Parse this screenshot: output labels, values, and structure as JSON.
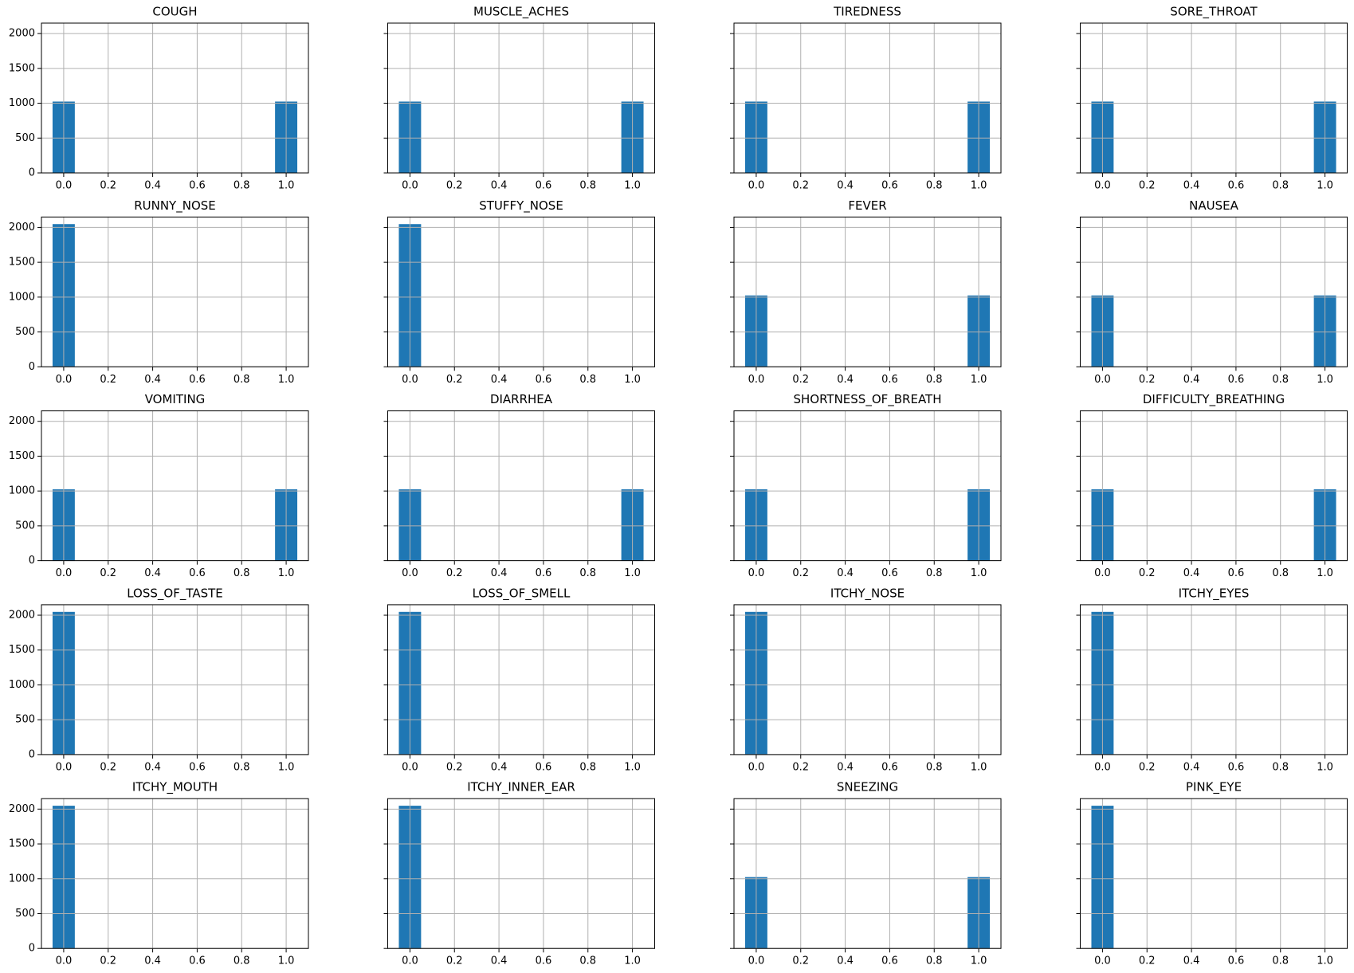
{
  "chart_data": [
    {
      "type": "histogram",
      "title": "COUGH",
      "bins": [
        -0.05,
        0.05,
        0.15,
        0.25,
        0.35,
        0.45,
        0.55,
        0.65,
        0.75,
        0.85,
        0.95,
        1.05
      ],
      "values": [
        1024,
        0,
        0,
        0,
        0,
        0,
        0,
        0,
        0,
        0,
        1024
      ],
      "color": "#1f77b4",
      "xlim": [
        -0.1,
        1.1
      ],
      "xticks": [
        {
          "value": 0,
          "label": "0.0"
        },
        0.2,
        0.4,
        0.6,
        0.8,
        {
          "value": 1,
          "label": "1.0"
        }
      ],
      "ylim": [
        0,
        2150
      ],
      "yticks": [
        0,
        500,
        1000,
        1500,
        2000
      ],
      "grid": true
    },
    {
      "type": "histogram",
      "title": "MUSCLE_ACHES",
      "bins": [
        -0.05,
        0.05,
        0.15,
        0.25,
        0.35,
        0.45,
        0.55,
        0.65,
        0.75,
        0.85,
        0.95,
        1.05
      ],
      "values": [
        1024,
        0,
        0,
        0,
        0,
        0,
        0,
        0,
        0,
        0,
        1024
      ],
      "color": "#1f77b4",
      "xlim": [
        -0.1,
        1.1
      ],
      "xticks": [
        {
          "value": 0,
          "label": "0.0"
        },
        0.2,
        0.4,
        0.6,
        0.8,
        {
          "value": 1,
          "label": "1.0"
        }
      ],
      "ylim": [
        0,
        2150
      ],
      "yticks": [
        0,
        500,
        1000,
        1500,
        2000
      ],
      "grid": true
    },
    {
      "type": "histogram",
      "title": "TIREDNESS",
      "bins": [
        -0.05,
        0.05,
        0.15,
        0.25,
        0.35,
        0.45,
        0.55,
        0.65,
        0.75,
        0.85,
        0.95,
        1.05
      ],
      "values": [
        1024,
        0,
        0,
        0,
        0,
        0,
        0,
        0,
        0,
        0,
        1024
      ],
      "color": "#1f77b4",
      "xlim": [
        -0.1,
        1.1
      ],
      "xticks": [
        {
          "value": 0,
          "label": "0.0"
        },
        0.2,
        0.4,
        0.6,
        0.8,
        {
          "value": 1,
          "label": "1.0"
        }
      ],
      "ylim": [
        0,
        2150
      ],
      "yticks": [
        0,
        500,
        1000,
        1500,
        2000
      ],
      "grid": true
    },
    {
      "type": "histogram",
      "title": "SORE_THROAT",
      "bins": [
        -0.05,
        0.05,
        0.15,
        0.25,
        0.35,
        0.45,
        0.55,
        0.65,
        0.75,
        0.85,
        0.95,
        1.05
      ],
      "values": [
        1024,
        0,
        0,
        0,
        0,
        0,
        0,
        0,
        0,
        0,
        1024
      ],
      "color": "#1f77b4",
      "xlim": [
        -0.1,
        1.1
      ],
      "xticks": [
        {
          "value": 0,
          "label": "0.0"
        },
        0.2,
        0.4,
        0.6,
        0.8,
        {
          "value": 1,
          "label": "1.0"
        }
      ],
      "ylim": [
        0,
        2150
      ],
      "yticks": [
        0,
        500,
        1000,
        1500,
        2000
      ],
      "grid": true
    },
    {
      "type": "histogram",
      "title": "RUNNY_NOSE",
      "bins": [
        -0.05,
        0.05,
        0.15,
        0.25,
        0.35,
        0.45,
        0.55,
        0.65,
        0.75,
        0.85,
        0.95,
        1.05
      ],
      "values": [
        2048,
        0,
        0,
        0,
        0,
        0,
        0,
        0,
        0,
        0,
        0
      ],
      "color": "#1f77b4",
      "xlim": [
        -0.1,
        1.1
      ],
      "xticks": [
        {
          "value": 0,
          "label": "0.0"
        },
        0.2,
        0.4,
        0.6,
        0.8,
        {
          "value": 1,
          "label": "1.0"
        }
      ],
      "ylim": [
        0,
        2150
      ],
      "yticks": [
        0,
        500,
        1000,
        1500,
        2000
      ],
      "grid": true
    },
    {
      "type": "histogram",
      "title": "STUFFY_NOSE",
      "bins": [
        -0.05,
        0.05,
        0.15,
        0.25,
        0.35,
        0.45,
        0.55,
        0.65,
        0.75,
        0.85,
        0.95,
        1.05
      ],
      "values": [
        2048,
        0,
        0,
        0,
        0,
        0,
        0,
        0,
        0,
        0,
        0
      ],
      "color": "#1f77b4",
      "xlim": [
        -0.1,
        1.1
      ],
      "xticks": [
        {
          "value": 0,
          "label": "0.0"
        },
        0.2,
        0.4,
        0.6,
        0.8,
        {
          "value": 1,
          "label": "1.0"
        }
      ],
      "ylim": [
        0,
        2150
      ],
      "yticks": [
        0,
        500,
        1000,
        1500,
        2000
      ],
      "grid": true
    },
    {
      "type": "histogram",
      "title": "FEVER",
      "bins": [
        -0.05,
        0.05,
        0.15,
        0.25,
        0.35,
        0.45,
        0.55,
        0.65,
        0.75,
        0.85,
        0.95,
        1.05
      ],
      "values": [
        1024,
        0,
        0,
        0,
        0,
        0,
        0,
        0,
        0,
        0,
        1024
      ],
      "color": "#1f77b4",
      "xlim": [
        -0.1,
        1.1
      ],
      "xticks": [
        {
          "value": 0,
          "label": "0.0"
        },
        0.2,
        0.4,
        0.6,
        0.8,
        {
          "value": 1,
          "label": "1.0"
        }
      ],
      "ylim": [
        0,
        2150
      ],
      "yticks": [
        0,
        500,
        1000,
        1500,
        2000
      ],
      "grid": true
    },
    {
      "type": "histogram",
      "title": "NAUSEA",
      "bins": [
        -0.05,
        0.05,
        0.15,
        0.25,
        0.35,
        0.45,
        0.55,
        0.65,
        0.75,
        0.85,
        0.95,
        1.05
      ],
      "values": [
        1024,
        0,
        0,
        0,
        0,
        0,
        0,
        0,
        0,
        0,
        1024
      ],
      "color": "#1f77b4",
      "xlim": [
        -0.1,
        1.1
      ],
      "xticks": [
        {
          "value": 0,
          "label": "0.0"
        },
        0.2,
        0.4,
        0.6,
        0.8,
        {
          "value": 1,
          "label": "1.0"
        }
      ],
      "ylim": [
        0,
        2150
      ],
      "yticks": [
        0,
        500,
        1000,
        1500,
        2000
      ],
      "grid": true
    },
    {
      "type": "histogram",
      "title": "VOMITING",
      "bins": [
        -0.05,
        0.05,
        0.15,
        0.25,
        0.35,
        0.45,
        0.55,
        0.65,
        0.75,
        0.85,
        0.95,
        1.05
      ],
      "values": [
        1024,
        0,
        0,
        0,
        0,
        0,
        0,
        0,
        0,
        0,
        1024
      ],
      "color": "#1f77b4",
      "xlim": [
        -0.1,
        1.1
      ],
      "xticks": [
        {
          "value": 0,
          "label": "0.0"
        },
        0.2,
        0.4,
        0.6,
        0.8,
        {
          "value": 1,
          "label": "1.0"
        }
      ],
      "ylim": [
        0,
        2150
      ],
      "yticks": [
        0,
        500,
        1000,
        1500,
        2000
      ],
      "grid": true
    },
    {
      "type": "histogram",
      "title": "DIARRHEA",
      "bins": [
        -0.05,
        0.05,
        0.15,
        0.25,
        0.35,
        0.45,
        0.55,
        0.65,
        0.75,
        0.85,
        0.95,
        1.05
      ],
      "values": [
        1024,
        0,
        0,
        0,
        0,
        0,
        0,
        0,
        0,
        0,
        1024
      ],
      "color": "#1f77b4",
      "xlim": [
        -0.1,
        1.1
      ],
      "xticks": [
        {
          "value": 0,
          "label": "0.0"
        },
        0.2,
        0.4,
        0.6,
        0.8,
        {
          "value": 1,
          "label": "1.0"
        }
      ],
      "ylim": [
        0,
        2150
      ],
      "yticks": [
        0,
        500,
        1000,
        1500,
        2000
      ],
      "grid": true
    },
    {
      "type": "histogram",
      "title": "SHORTNESS_OF_BREATH",
      "bins": [
        -0.05,
        0.05,
        0.15,
        0.25,
        0.35,
        0.45,
        0.55,
        0.65,
        0.75,
        0.85,
        0.95,
        1.05
      ],
      "values": [
        1024,
        0,
        0,
        0,
        0,
        0,
        0,
        0,
        0,
        0,
        1024
      ],
      "color": "#1f77b4",
      "xlim": [
        -0.1,
        1.1
      ],
      "xticks": [
        {
          "value": 0,
          "label": "0.0"
        },
        0.2,
        0.4,
        0.6,
        0.8,
        {
          "value": 1,
          "label": "1.0"
        }
      ],
      "ylim": [
        0,
        2150
      ],
      "yticks": [
        0,
        500,
        1000,
        1500,
        2000
      ],
      "grid": true
    },
    {
      "type": "histogram",
      "title": "DIFFICULTY_BREATHING",
      "bins": [
        -0.05,
        0.05,
        0.15,
        0.25,
        0.35,
        0.45,
        0.55,
        0.65,
        0.75,
        0.85,
        0.95,
        1.05
      ],
      "values": [
        1024,
        0,
        0,
        0,
        0,
        0,
        0,
        0,
        0,
        0,
        1024
      ],
      "color": "#1f77b4",
      "xlim": [
        -0.1,
        1.1
      ],
      "xticks": [
        {
          "value": 0,
          "label": "0.0"
        },
        0.2,
        0.4,
        0.6,
        0.8,
        {
          "value": 1,
          "label": "1.0"
        }
      ],
      "ylim": [
        0,
        2150
      ],
      "yticks": [
        0,
        500,
        1000,
        1500,
        2000
      ],
      "grid": true
    },
    {
      "type": "histogram",
      "title": "LOSS_OF_TASTE",
      "bins": [
        -0.05,
        0.05,
        0.15,
        0.25,
        0.35,
        0.45,
        0.55,
        0.65,
        0.75,
        0.85,
        0.95,
        1.05
      ],
      "values": [
        2048,
        0,
        0,
        0,
        0,
        0,
        0,
        0,
        0,
        0,
        0
      ],
      "color": "#1f77b4",
      "xlim": [
        -0.1,
        1.1
      ],
      "xticks": [
        {
          "value": 0,
          "label": "0.0"
        },
        0.2,
        0.4,
        0.6,
        0.8,
        {
          "value": 1,
          "label": "1.0"
        }
      ],
      "ylim": [
        0,
        2150
      ],
      "yticks": [
        0,
        500,
        1000,
        1500,
        2000
      ],
      "grid": true
    },
    {
      "type": "histogram",
      "title": "LOSS_OF_SMELL",
      "bins": [
        -0.05,
        0.05,
        0.15,
        0.25,
        0.35,
        0.45,
        0.55,
        0.65,
        0.75,
        0.85,
        0.95,
        1.05
      ],
      "values": [
        2048,
        0,
        0,
        0,
        0,
        0,
        0,
        0,
        0,
        0,
        0
      ],
      "color": "#1f77b4",
      "xlim": [
        -0.1,
        1.1
      ],
      "xticks": [
        {
          "value": 0,
          "label": "0.0"
        },
        0.2,
        0.4,
        0.6,
        0.8,
        {
          "value": 1,
          "label": "1.0"
        }
      ],
      "ylim": [
        0,
        2150
      ],
      "yticks": [
        0,
        500,
        1000,
        1500,
        2000
      ],
      "grid": true
    },
    {
      "type": "histogram",
      "title": "ITCHY_NOSE",
      "bins": [
        -0.05,
        0.05,
        0.15,
        0.25,
        0.35,
        0.45,
        0.55,
        0.65,
        0.75,
        0.85,
        0.95,
        1.05
      ],
      "values": [
        2048,
        0,
        0,
        0,
        0,
        0,
        0,
        0,
        0,
        0,
        0
      ],
      "color": "#1f77b4",
      "xlim": [
        -0.1,
        1.1
      ],
      "xticks": [
        {
          "value": 0,
          "label": "0.0"
        },
        0.2,
        0.4,
        0.6,
        0.8,
        {
          "value": 1,
          "label": "1.0"
        }
      ],
      "ylim": [
        0,
        2150
      ],
      "yticks": [
        0,
        500,
        1000,
        1500,
        2000
      ],
      "grid": true
    },
    {
      "type": "histogram",
      "title": "ITCHY_EYES",
      "bins": [
        -0.05,
        0.05,
        0.15,
        0.25,
        0.35,
        0.45,
        0.55,
        0.65,
        0.75,
        0.85,
        0.95,
        1.05
      ],
      "values": [
        2048,
        0,
        0,
        0,
        0,
        0,
        0,
        0,
        0,
        0,
        0
      ],
      "color": "#1f77b4",
      "xlim": [
        -0.1,
        1.1
      ],
      "xticks": [
        {
          "value": 0,
          "label": "0.0"
        },
        0.2,
        0.4,
        0.6,
        0.8,
        {
          "value": 1,
          "label": "1.0"
        }
      ],
      "ylim": [
        0,
        2150
      ],
      "yticks": [
        0,
        500,
        1000,
        1500,
        2000
      ],
      "grid": true
    },
    {
      "type": "histogram",
      "title": "ITCHY_MOUTH",
      "bins": [
        -0.05,
        0.05,
        0.15,
        0.25,
        0.35,
        0.45,
        0.55,
        0.65,
        0.75,
        0.85,
        0.95,
        1.05
      ],
      "values": [
        2048,
        0,
        0,
        0,
        0,
        0,
        0,
        0,
        0,
        0,
        0
      ],
      "color": "#1f77b4",
      "xlim": [
        -0.1,
        1.1
      ],
      "xticks": [
        {
          "value": 0,
          "label": "0.0"
        },
        0.2,
        0.4,
        0.6,
        0.8,
        {
          "value": 1,
          "label": "1.0"
        }
      ],
      "ylim": [
        0,
        2150
      ],
      "yticks": [
        0,
        500,
        1000,
        1500,
        2000
      ],
      "grid": true
    },
    {
      "type": "histogram",
      "title": "ITCHY_INNER_EAR",
      "bins": [
        -0.05,
        0.05,
        0.15,
        0.25,
        0.35,
        0.45,
        0.55,
        0.65,
        0.75,
        0.85,
        0.95,
        1.05
      ],
      "values": [
        2048,
        0,
        0,
        0,
        0,
        0,
        0,
        0,
        0,
        0,
        0
      ],
      "color": "#1f77b4",
      "xlim": [
        -0.1,
        1.1
      ],
      "xticks": [
        {
          "value": 0,
          "label": "0.0"
        },
        0.2,
        0.4,
        0.6,
        0.8,
        {
          "value": 1,
          "label": "1.0"
        }
      ],
      "ylim": [
        0,
        2150
      ],
      "yticks": [
        0,
        500,
        1000,
        1500,
        2000
      ],
      "grid": true
    },
    {
      "type": "histogram",
      "title": "SNEEZING",
      "bins": [
        -0.05,
        0.05,
        0.15,
        0.25,
        0.35,
        0.45,
        0.55,
        0.65,
        0.75,
        0.85,
        0.95,
        1.05
      ],
      "values": [
        1024,
        0,
        0,
        0,
        0,
        0,
        0,
        0,
        0,
        0,
        1024
      ],
      "color": "#1f77b4",
      "xlim": [
        -0.1,
        1.1
      ],
      "xticks": [
        {
          "value": 0,
          "label": "0.0"
        },
        0.2,
        0.4,
        0.6,
        0.8,
        {
          "value": 1,
          "label": "1.0"
        }
      ],
      "ylim": [
        0,
        2150
      ],
      "yticks": [
        0,
        500,
        1000,
        1500,
        2000
      ],
      "grid": true
    },
    {
      "type": "histogram",
      "title": "PINK_EYE",
      "bins": [
        -0.05,
        0.05,
        0.15,
        0.25,
        0.35,
        0.45,
        0.55,
        0.65,
        0.75,
        0.85,
        0.95,
        1.05
      ],
      "values": [
        2048,
        0,
        0,
        0,
        0,
        0,
        0,
        0,
        0,
        0,
        0
      ],
      "color": "#1f77b4",
      "xlim": [
        -0.1,
        1.1
      ],
      "xticks": [
        {
          "value": 0,
          "label": "0.0"
        },
        0.2,
        0.4,
        0.6,
        0.8,
        {
          "value": 1,
          "label": "1.0"
        }
      ],
      "ylim": [
        0,
        2150
      ],
      "yticks": [
        0,
        500,
        1000,
        1500,
        2000
      ],
      "grid": true
    }
  ]
}
